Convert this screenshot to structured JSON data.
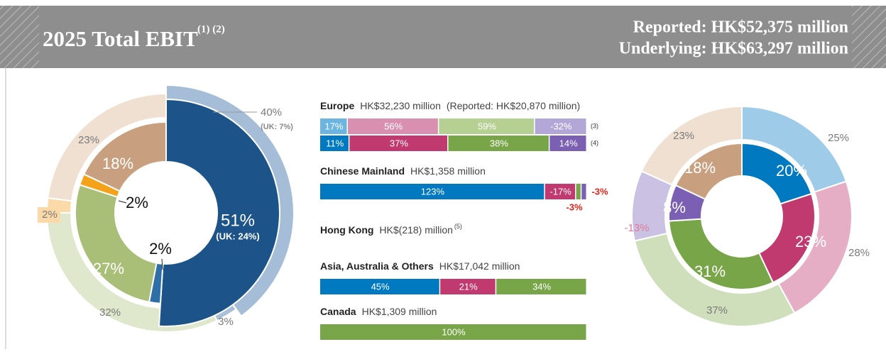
{
  "header": {
    "title": "2025 Total EBIT",
    "title_note": "(1) (2)",
    "reported": "Reported: HK$52,375 million",
    "underlying": "Underlying: HK$63,297 million"
  },
  "chart_data": [
    {
      "type": "donut",
      "inner": {
        "values": [
          51,
          2,
          27,
          2,
          18
        ],
        "value_labels": [
          "51%",
          "2%",
          "27%",
          "2%",
          "18%"
        ],
        "sub_labels": [
          "(UK: 24%)",
          null,
          null,
          null,
          null
        ],
        "colors": [
          "#1c5389",
          "#2f6fa8",
          "#a9bf78",
          "#f5a21b",
          "#c9a07f"
        ]
      },
      "outer": {
        "values": [
          40,
          3,
          32,
          2,
          23
        ],
        "value_labels": [
          "40%",
          "3%",
          "32%",
          "2%",
          "23%"
        ],
        "sub_labels": [
          "(UK: 7%)",
          null,
          null,
          null,
          null
        ],
        "colors": [
          "#a5bdd6",
          "#a9c0d8",
          "#dfe7cd",
          "#fbd9a8",
          "#efe0d2"
        ]
      }
    },
    {
      "type": "stacked-bar",
      "groups": [
        {
          "name": "Europe",
          "amount": "HK$32,230 million",
          "note": "(Reported: HK$20,870 million)",
          "rows": [
            {
              "values": [
                17,
                56,
                59,
                -32
              ],
              "value_labels": [
                "17%",
                "56%",
                "59%",
                "-32%"
              ],
              "colors": [
                "#6cb5e0",
                "#d88fb0",
                "#b6cf93",
                "#b3a7d8"
              ],
              "footnote": "(3)"
            },
            {
              "values": [
                11,
                37,
                38,
                14
              ],
              "value_labels": [
                "11%",
                "37%",
                "38%",
                "14%"
              ],
              "colors": [
                "#0079c1",
                "#c0396f",
                "#78a548",
                "#7a5fb3"
              ],
              "footnote": "(4)"
            }
          ]
        },
        {
          "name": "Chinese Mainland",
          "amount": "HK$1,358 million",
          "rows": [
            {
              "values": [
                123,
                -17,
                -3,
                -3
              ],
              "value_labels": [
                "123%",
                "-17%",
                "-3%",
                "-3%"
              ],
              "colors": [
                "#0079c1",
                "#c0396f",
                "#78a548",
                "#7a5fb3"
              ]
            }
          ]
        },
        {
          "name": "Hong Kong",
          "amount": "HK$(218) million",
          "footnote": "(5)",
          "rows": []
        },
        {
          "name": "Asia, Australia & Others",
          "amount": "HK$17,042 million",
          "rows": [
            {
              "values": [
                45,
                21,
                34
              ],
              "value_labels": [
                "45%",
                "21%",
                "34%"
              ],
              "colors": [
                "#0079c1",
                "#c0396f",
                "#78a548"
              ]
            }
          ]
        },
        {
          "name": "Canada",
          "amount": "HK$1,309 million",
          "rows": [
            {
              "values": [
                100
              ],
              "value_labels": [
                "100%"
              ],
              "colors": [
                "#78a548"
              ]
            }
          ]
        }
      ]
    },
    {
      "type": "donut",
      "inner": {
        "values": [
          20,
          23,
          31,
          8,
          18
        ],
        "value_labels": [
          "20%",
          "23%",
          "31%",
          "8%",
          "18%"
        ],
        "colors": [
          "#0079c1",
          "#c0396f",
          "#78a548",
          "#7a5fb3",
          "#c9a07f"
        ]
      },
      "outer": {
        "values": [
          25,
          28,
          37,
          -13,
          23
        ],
        "value_labels": [
          "25%",
          "28%",
          "37%",
          "-13%",
          "23%"
        ],
        "colors": [
          "#9dcbe8",
          "#e6aec5",
          "#cfdfbb",
          "#cbc2e3",
          "#efe0d2"
        ]
      }
    }
  ]
}
